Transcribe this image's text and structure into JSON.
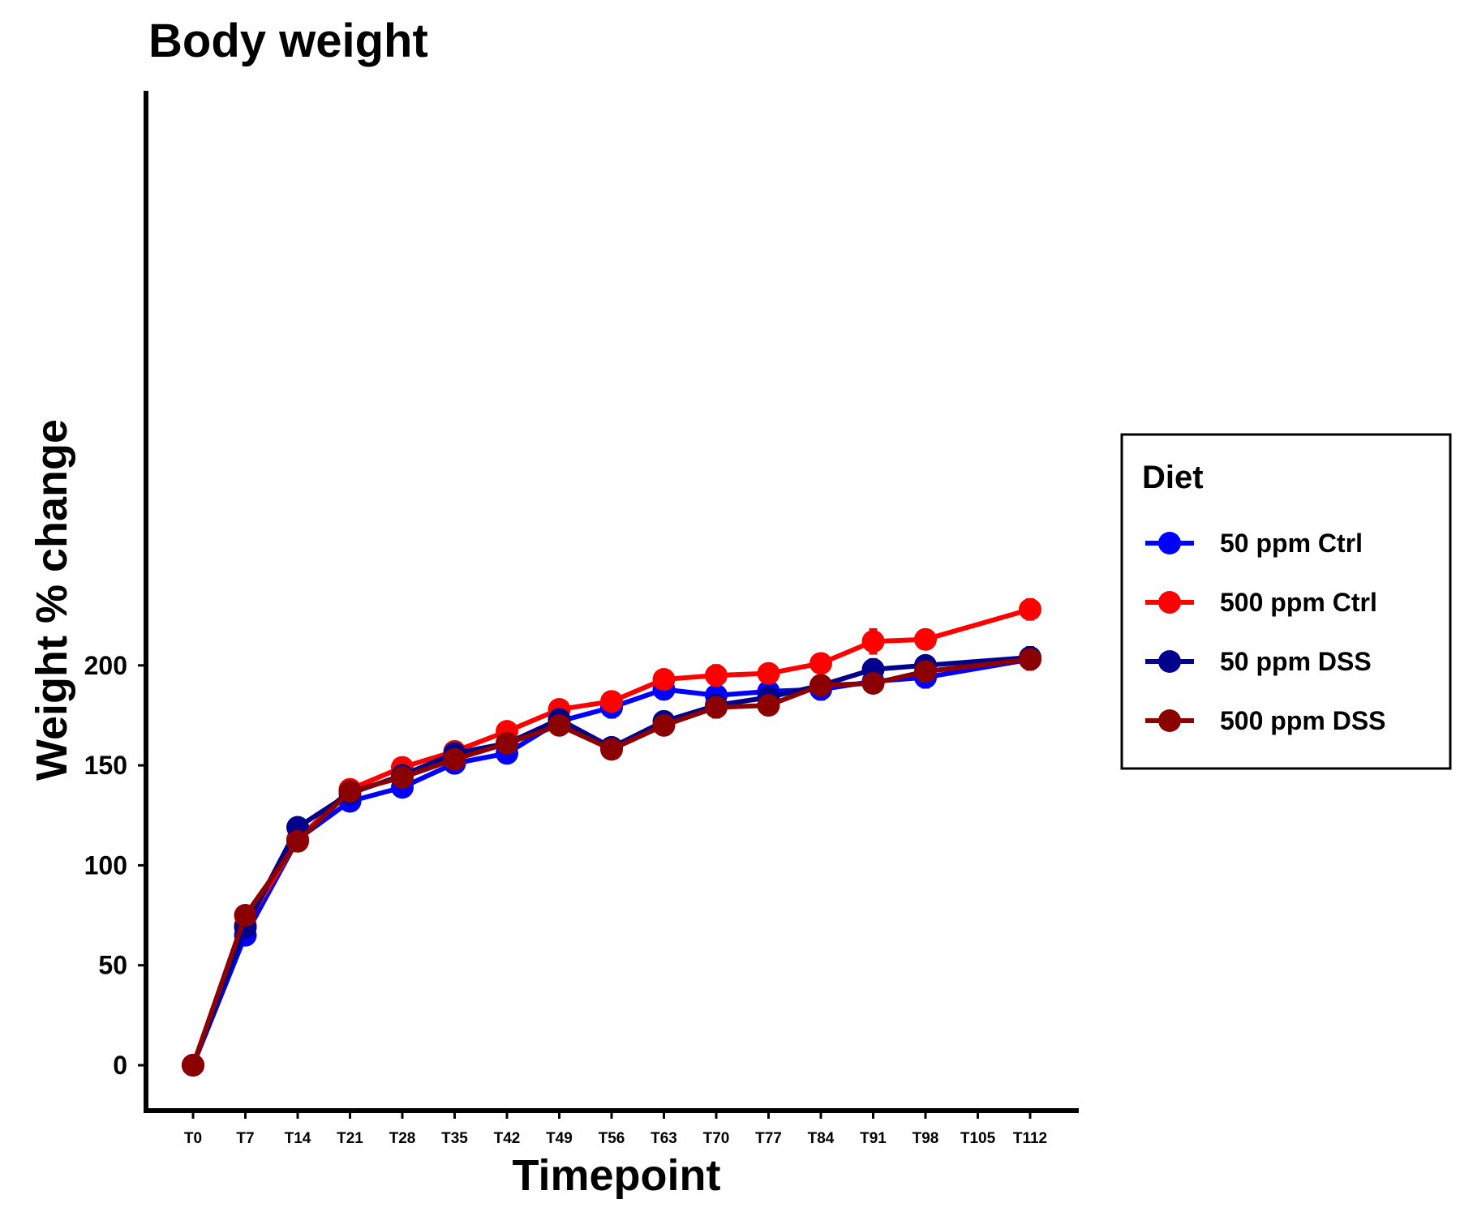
{
  "chart_data": {
    "type": "line",
    "title": "Body weight",
    "xlabel": "Timepoint",
    "ylabel": "Weight % change",
    "categories": [
      "T0",
      "T7",
      "T14",
      "T21",
      "T28",
      "T35",
      "T42",
      "T49",
      "T56",
      "T63",
      "T70",
      "T77",
      "T84",
      "T91",
      "T98",
      "T105",
      "T112"
    ],
    "yticks": [
      0,
      50,
      100,
      150,
      200
    ],
    "ylim": [
      -10,
      245
    ],
    "grid": false,
    "legend": {
      "title": "Diet",
      "position": "right"
    },
    "series": [
      {
        "name": "50 ppm Ctrl",
        "color": "#0000ff",
        "values": [
          0,
          65,
          113,
          132,
          139,
          151,
          156,
          172,
          179,
          188,
          185,
          187,
          188,
          192,
          194,
          null,
          203
        ],
        "errors": [
          0,
          3,
          3,
          3,
          3,
          3,
          3,
          4,
          5,
          4,
          4,
          4,
          5,
          4,
          5,
          null,
          5
        ]
      },
      {
        "name": "500 ppm Ctrl",
        "color": "#ff0000",
        "values": [
          0,
          70,
          113,
          138,
          149,
          157,
          167,
          178,
          182,
          193,
          195,
          196,
          201,
          212,
          213,
          null,
          228
        ],
        "errors": [
          0,
          3,
          5,
          4,
          4,
          4,
          4,
          4,
          4,
          4,
          5,
          4,
          4,
          6,
          4,
          null,
          5
        ]
      },
      {
        "name": "50 ppm DSS",
        "color": "#00008b",
        "values": [
          0,
          69,
          119,
          136,
          145,
          156,
          161,
          173,
          159,
          172,
          180,
          184,
          190,
          198,
          200,
          null,
          204
        ],
        "errors": [
          0,
          3,
          3,
          3,
          3,
          3,
          3,
          4,
          4,
          4,
          5,
          4,
          4,
          5,
          4,
          null,
          5
        ]
      },
      {
        "name": "500 ppm DSS",
        "color": "#8b0000",
        "values": [
          0,
          75,
          112,
          137,
          144,
          153,
          161,
          170,
          158,
          170,
          179,
          180,
          190,
          191,
          197,
          null,
          203
        ],
        "errors": [
          0,
          3,
          4,
          3,
          3,
          3,
          3,
          4,
          4,
          3,
          5,
          4,
          3,
          4,
          4,
          null,
          5
        ]
      }
    ]
  }
}
